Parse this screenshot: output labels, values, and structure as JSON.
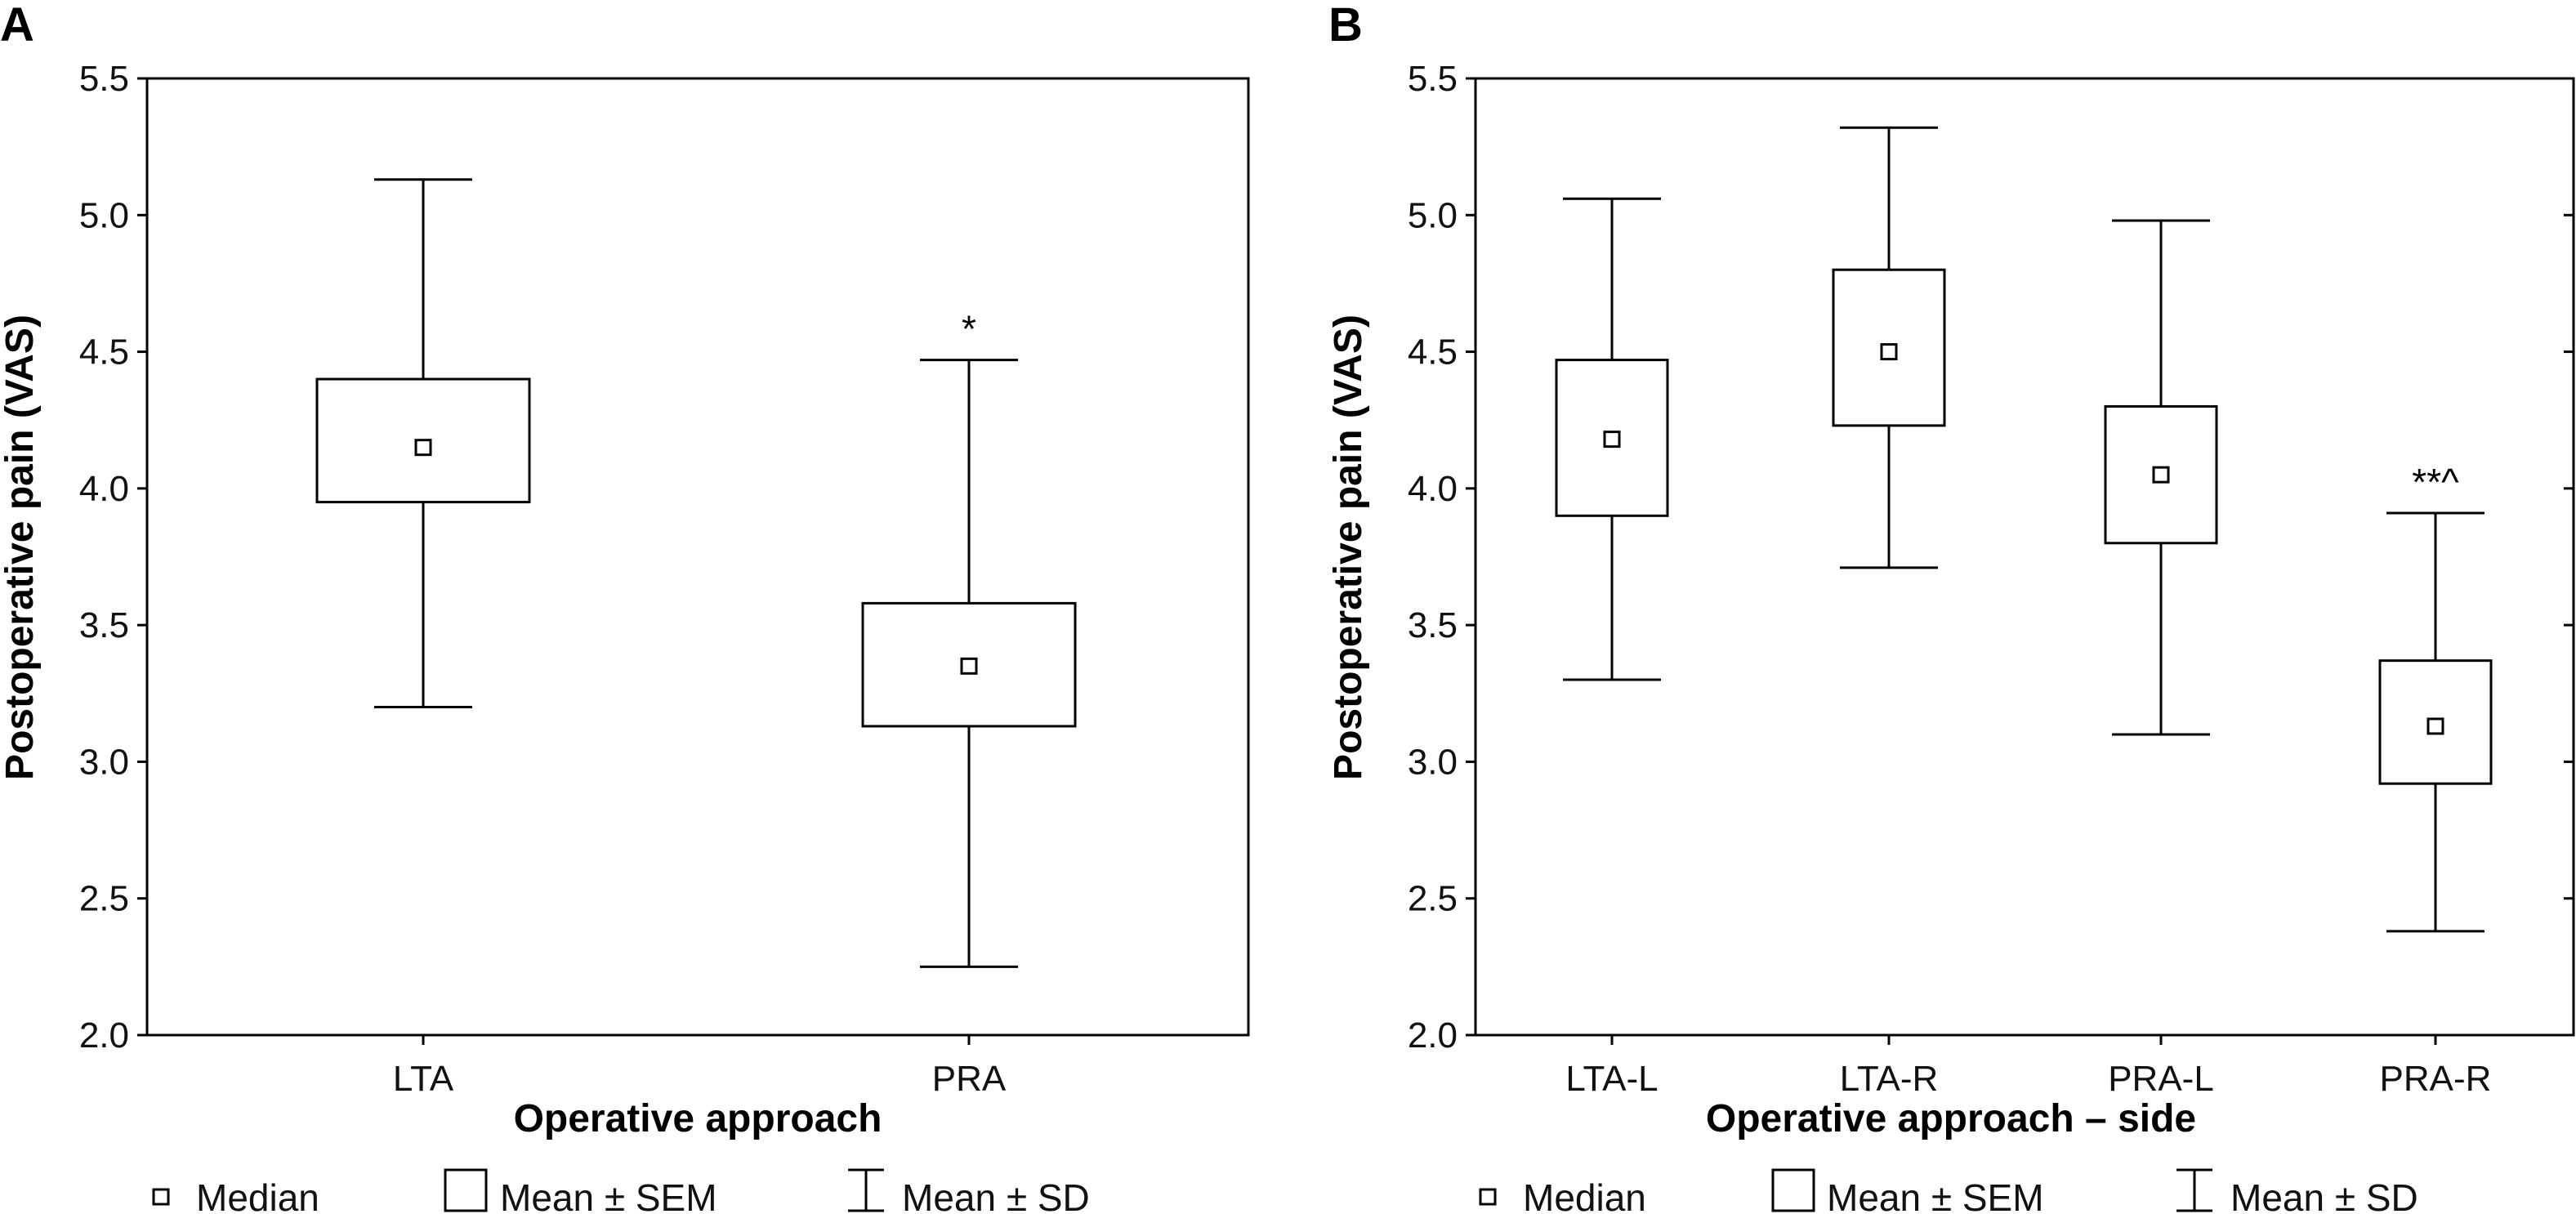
{
  "chart_data": [
    {
      "panel": "A",
      "type": "box",
      "xlabel": "Operative approach",
      "ylabel": "Postoperative pain (VAS)",
      "ylim": [
        2.0,
        5.5
      ],
      "yticks": [
        "2.0",
        "2.5",
        "3.0",
        "3.5",
        "4.0",
        "4.5",
        "5.0",
        "5.5"
      ],
      "categories": [
        "LTA",
        "PRA"
      ],
      "median": [
        4.15,
        3.35
      ],
      "sem_low": [
        3.95,
        3.13
      ],
      "sem_high": [
        4.4,
        3.58
      ],
      "sd_low": [
        3.2,
        2.25
      ],
      "sd_high": [
        5.13,
        4.47
      ],
      "annotations": [
        "",
        "*"
      ]
    },
    {
      "panel": "B",
      "type": "box",
      "xlabel": "Operative approach – side",
      "ylabel": "Postoperative pain (VAS)",
      "ylim": [
        2.0,
        5.5
      ],
      "yticks": [
        "2.0",
        "2.5",
        "3.0",
        "3.5",
        "4.0",
        "4.5",
        "5.0",
        "5.5"
      ],
      "categories": [
        "LTA-L",
        "LTA-R",
        "PRA-L",
        "PRA-R"
      ],
      "median": [
        4.18,
        4.5,
        4.05,
        3.13
      ],
      "sem_low": [
        3.9,
        4.23,
        3.8,
        2.92
      ],
      "sem_high": [
        4.47,
        4.8,
        4.3,
        3.37
      ],
      "sd_low": [
        3.3,
        3.71,
        3.1,
        2.38
      ],
      "sd_high": [
        5.06,
        5.32,
        4.98,
        3.91
      ],
      "annotations": [
        "",
        "",
        "",
        "**^"
      ]
    }
  ],
  "legend": {
    "median": "Median",
    "sem": "Mean ± SEM",
    "sd": "Mean ± SD"
  }
}
